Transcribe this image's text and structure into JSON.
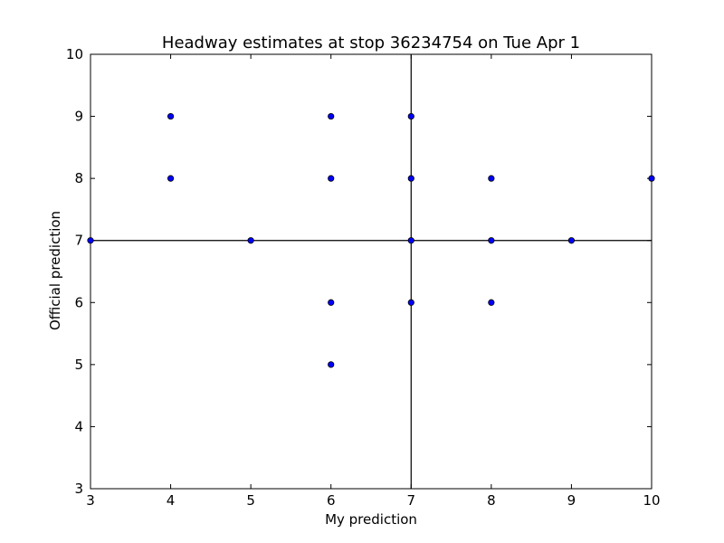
{
  "chart_data": {
    "type": "scatter",
    "title": "Headway estimates at stop 36234754 on Tue Apr 1",
    "xlabel": "My prediction",
    "ylabel": "Official prediction",
    "xlim": [
      3,
      10
    ],
    "ylim": [
      3,
      10
    ],
    "xticks": [
      "3",
      "4",
      "5",
      "6",
      "7",
      "8",
      "9",
      "10"
    ],
    "yticks": [
      "3",
      "4",
      "5",
      "6",
      "7",
      "8",
      "9",
      "10"
    ],
    "reference_lines": {
      "x": 7,
      "y": 7
    },
    "grid": false,
    "legend": "none",
    "point_color": "#0000ff",
    "points": [
      {
        "x": 3,
        "y": 7
      },
      {
        "x": 4,
        "y": 9
      },
      {
        "x": 4,
        "y": 8
      },
      {
        "x": 5,
        "y": 7
      },
      {
        "x": 6,
        "y": 9
      },
      {
        "x": 6,
        "y": 8
      },
      {
        "x": 6,
        "y": 6
      },
      {
        "x": 6,
        "y": 5
      },
      {
        "x": 7,
        "y": 9
      },
      {
        "x": 7,
        "y": 8
      },
      {
        "x": 7,
        "y": 7
      },
      {
        "x": 7,
        "y": 6
      },
      {
        "x": 8,
        "y": 8
      },
      {
        "x": 8,
        "y": 7
      },
      {
        "x": 8,
        "y": 6
      },
      {
        "x": 9,
        "y": 7
      },
      {
        "x": 10,
        "y": 8
      }
    ]
  }
}
